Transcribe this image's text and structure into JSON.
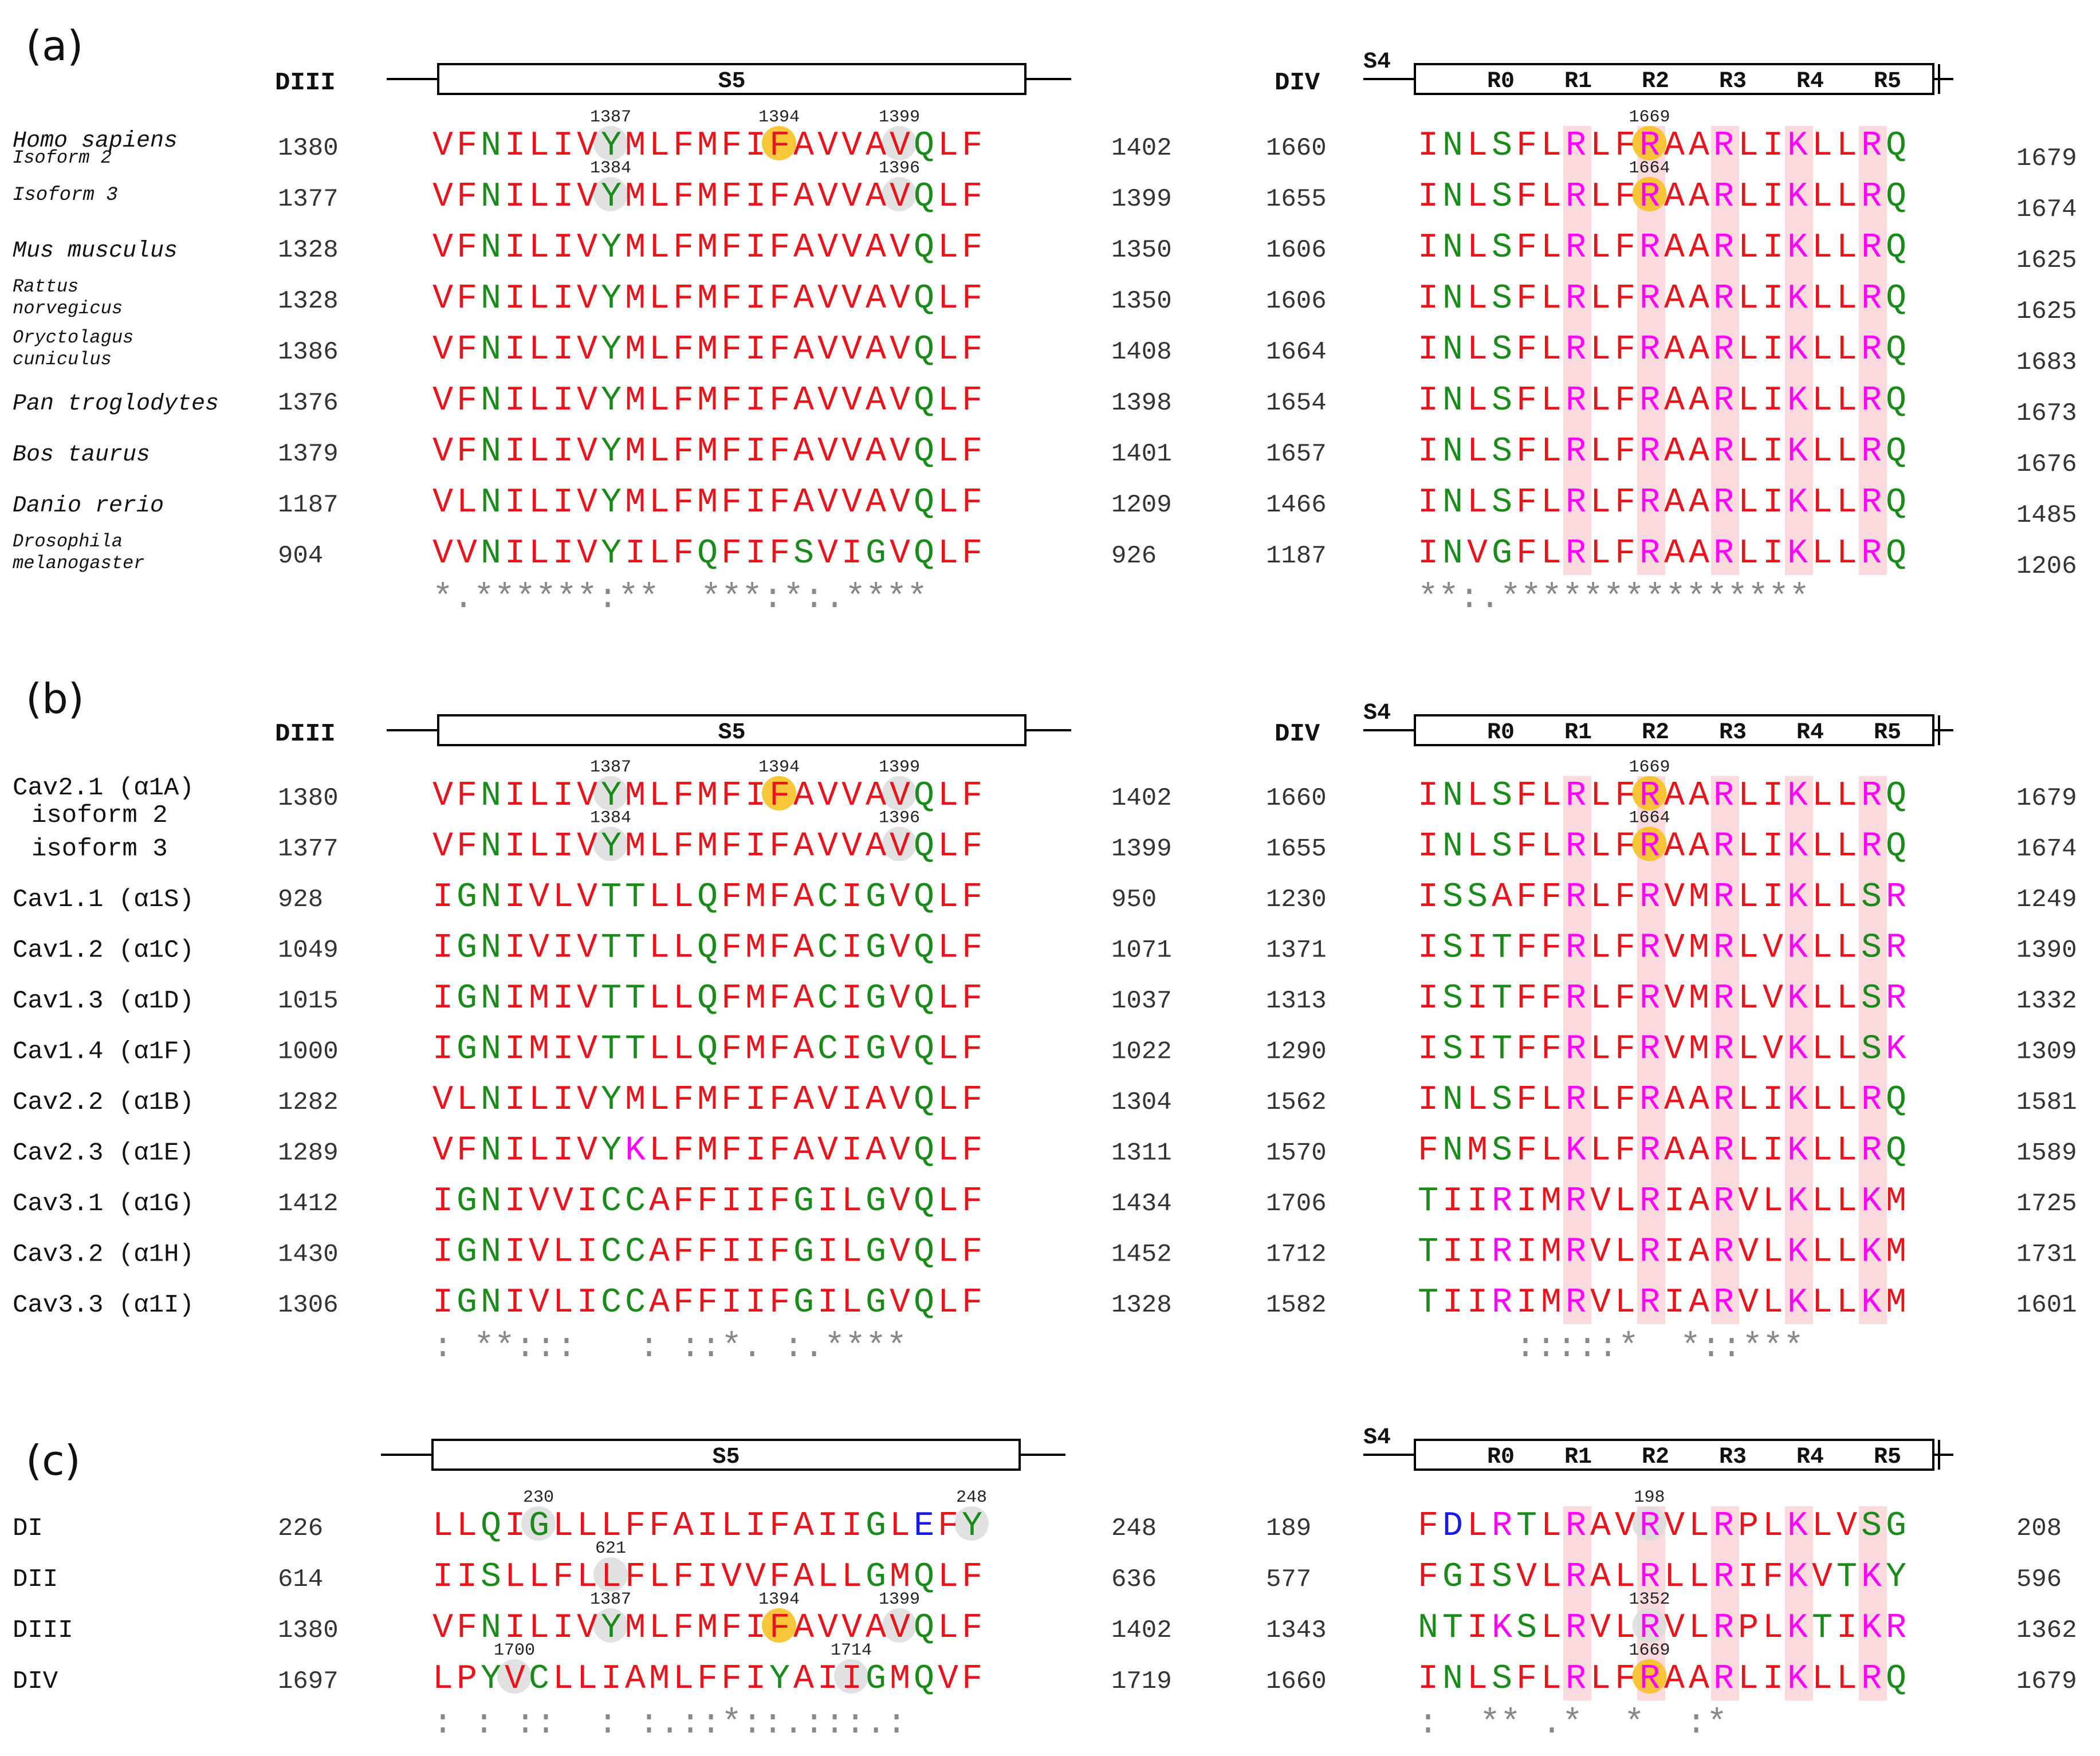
{
  "colors": {
    "hydrophobic": "#e8141c",
    "polar": "#1a8a1a",
    "basic": "#ff00ff",
    "acidic": "#1a1ae8",
    "num": "#333333",
    "cons": "#888888",
    "pinkBand": "#fadadd",
    "grayHi": "#dcdcdc",
    "yellowHi": "#f7c023"
  },
  "panels": [
    {
      "label": "(a)",
      "left_domain": "DIII",
      "left_segment": "S5",
      "right_segment_label": "S4",
      "right_domain": "DIV",
      "r_labels": [
        "R0",
        "R1",
        "R2",
        "R3",
        "R4",
        "R5"
      ],
      "italic_names": true,
      "conservation_left": "*.******:**  ***:*:.****",
      "conservation_right": "**:.***************",
      "rows": [
        {
          "name": [
            "Homo sapiens",
            "Isoform 2"
          ],
          "lstart": "1380",
          "lseq": "VFNILIVYMLFMFIFAVVAVQLF",
          "lend": "1402",
          "rstart": "1660",
          "rseq": "INLSFLRLFRAARLIKLLRQ",
          "rend": "1679",
          "ann": [
            "1387",
            "1394",
            "1399",
            "1669"
          ]
        },
        {
          "name": [
            "Isoform 3"
          ],
          "lstart": "1377",
          "lseq": "VFNILIVYMLFMFIFAVVAVQLF",
          "lend": "1399",
          "rstart": "1655",
          "rseq": "INLSFLRLFRAARLIKLLRQ",
          "rend": "1674",
          "ann": [
            "1384",
            "1396",
            "1664"
          ]
        },
        {
          "name": [
            "Mus musculus"
          ],
          "lstart": "1328",
          "lseq": "VFNILIVYMLFMFIFAVVAVQLF",
          "lend": "1350",
          "rstart": "1606",
          "rseq": "INLSFLRLFRAARLIKLLRQ",
          "rend": "1625"
        },
        {
          "name": [
            "Rattus",
            "norvegicus"
          ],
          "lstart": "1328",
          "lseq": "VFNILIVYMLFMFIFAVVAVQLF",
          "lend": "1350",
          "rstart": "1606",
          "rseq": "INLSFLRLFRAARLIKLLRQ",
          "rend": "1625"
        },
        {
          "name": [
            "Oryctolagus",
            "cuniculus"
          ],
          "lstart": "1386",
          "lseq": "VFNILIVYMLFMFIFAVVAVQLF",
          "lend": "1408",
          "rstart": "1664",
          "rseq": "INLSFLRLFRAARLIKLLRQ",
          "rend": "1683"
        },
        {
          "name": [
            "Pan troglodytes"
          ],
          "lstart": "1376",
          "lseq": "VFNILIVYMLFMFIFAVVAVQLF",
          "lend": "1398",
          "rstart": "1654",
          "rseq": "INLSFLRLFRAARLIKLLRQ",
          "rend": "1673"
        },
        {
          "name": [
            "Bos taurus"
          ],
          "lstart": "1379",
          "lseq": "VFNILIVYMLFMFIFAVVAVQLF",
          "lend": "1401",
          "rstart": "1657",
          "rseq": "INLSFLRLFRAARLIKLLRQ",
          "rend": "1676"
        },
        {
          "name": [
            "Danio rerio"
          ],
          "lstart": "1187",
          "lseq": "VLNILIVYMLFMFIFAVVAVQLF",
          "lend": "1209",
          "rstart": "1466",
          "rseq": "INLSFLRLFRAARLIKLLRQ",
          "rend": "1485"
        },
        {
          "name": [
            "Drosophila",
            "melanogaster"
          ],
          "lstart": "904",
          "lseq": "VVNILIVYILFQFIFSVIGVQLF",
          "lend": "926",
          "rstart": "1187",
          "rseq": "INVGFLRLFRAARLIKLLRQ",
          "rend": "1206"
        }
      ]
    },
    {
      "label": "(b)",
      "left_domain": "DIII",
      "left_segment": "S5",
      "right_segment_label": "S4",
      "right_domain": "DIV",
      "r_labels": [
        "R0",
        "R1",
        "R2",
        "R3",
        "R4",
        "R5"
      ],
      "italic_names": false,
      "conservation_left": ": **:::   : ::*. :.****",
      "conservation_right": ":::::*  *::***",
      "rows": [
        {
          "name": [
            "Cav2.1 (α1A)",
            "isoform 2"
          ],
          "lstart": "1380",
          "lseq": "VFNILIVYMLFMFIFAVVAVQLF",
          "lend": "1402",
          "rstart": "1660",
          "rseq": "INLSFLRLFRAARLIKLLRQ",
          "rend": "1679",
          "ann": [
            "1387",
            "1394",
            "1399",
            "1669"
          ]
        },
        {
          "name": [
            "isoform 3"
          ],
          "lstart": "1377",
          "lseq": "VFNILIVYMLFMFIFAVVAVQLF",
          "lend": "1399",
          "rstart": "1655",
          "rseq": "INLSFLRLFRAARLIKLLRQ",
          "rend": "1674",
          "ann": [
            "1384",
            "1396",
            "1664"
          ]
        },
        {
          "name": [
            "Cav1.1 (α1S)"
          ],
          "lstart": "928",
          "lseq": "IGNIVLVTTLLQFMFACIGVQLF",
          "lend": "950",
          "rstart": "1230",
          "rseq": "ISSAFFRLFRVMRLIKLLSR",
          "rend": "1249"
        },
        {
          "name": [
            "Cav1.2 (α1C)"
          ],
          "lstart": "1049",
          "lseq": "IGNIVIVTTLLQFMFACIGVQLF",
          "lend": "1071",
          "rstart": "1371",
          "rseq": "ISITFFRLFRVMRLVKLLSR",
          "rend": "1390"
        },
        {
          "name": [
            "Cav1.3 (α1D)"
          ],
          "lstart": "1015",
          "lseq": "IGNIMIVTTLLQFMFACIGVQLF",
          "lend": "1037",
          "rstart": "1313",
          "rseq": "ISITFFRLFRVMRLVKLLSR",
          "rend": "1332"
        },
        {
          "name": [
            "Cav1.4 (α1F)"
          ],
          "lstart": "1000",
          "lseq": "IGNIMIVTTLLQFMFACIGVQLF",
          "lend": "1022",
          "rstart": "1290",
          "rseq": "ISITFFRLFRVMRLVKLLSK",
          "rend": "1309"
        },
        {
          "name": [
            "Cav2.2 (α1B)"
          ],
          "lstart": "1282",
          "lseq": "VLNILIVYMLFMFIFAVIAVQLF",
          "lend": "1304",
          "rstart": "1562",
          "rseq": "INLSFLRLFRAARLIKLLRQ",
          "rend": "1581"
        },
        {
          "name": [
            "Cav2.3 (α1E)"
          ],
          "lstart": "1289",
          "lseq": "VFNILIVYKLFMFIFAVIAVQLF",
          "lend": "1311",
          "rstart": "1570",
          "rseq": "FNMSFLKLFRAARLIKLLRQ",
          "rend": "1589"
        },
        {
          "name": [
            "Cav3.1 (α1G)"
          ],
          "lstart": "1412",
          "lseq": "IGNIVVICCAFFIIFGILGVQLF",
          "lend": "1434",
          "rstart": "1706",
          "rseq": "TIIRIMRVLRIARVLKLLKM",
          "rend": "1725"
        },
        {
          "name": [
            "Cav3.2 (α1H)"
          ],
          "lstart": "1430",
          "lseq": "IGNIVLICCAFFIIFGILGVQLF",
          "lend": "1452",
          "rstart": "1712",
          "rseq": "TIIRIMRVLRIARVLKLLKM",
          "rend": "1731"
        },
        {
          "name": [
            "Cav3.3 (α1I)"
          ],
          "lstart": "1306",
          "lseq": "IGNIVLICCAFFIIFGILGVQLF",
          "lend": "1328",
          "rstart": "1582",
          "rseq": "TIIRIMRVLRIARVLKLLKM",
          "rend": "1601"
        }
      ]
    },
    {
      "label": "(c)",
      "left_domain": "",
      "left_segment": "S5",
      "right_segment_label": "S4",
      "right_domain": "",
      "r_labels": [
        "R0",
        "R1",
        "R2",
        "R3",
        "R4",
        "R5"
      ],
      "italic_names": false,
      "conservation_left": ": : ::  : :.::*::.:::.:",
      "conservation_right": ":  ** .*  *  :*",
      "rows": [
        {
          "name": [
            "DI"
          ],
          "lstart": "226",
          "lseq": "LLQIGLLLFFAILIFAIIGLEFY",
          "lend": "248",
          "rstart": "189",
          "rseq": "FDLRTLRAVRVLRPLKLVSG",
          "rend": "208",
          "ann": [
            "230",
            "248",
            "198"
          ]
        },
        {
          "name": [
            "DII"
          ],
          "lstart": "614",
          "lseq": "IISLLFLLFLFIVVFALLGMQLF",
          "lend": "636",
          "rstart": "577",
          "rseq": "FGISVLRALRLLRIFKVTKY",
          "rend": "596",
          "ann": [
            "621"
          ]
        },
        {
          "name": [
            "DIII"
          ],
          "lstart": "1380",
          "lseq": "VFNILIVYMLFMFIFAVVAVQLF",
          "lend": "1402",
          "rstart": "1343",
          "rseq": "NTIKSLRVLRVLRPLKTIKR",
          "rend": "1362",
          "ann": [
            "1387",
            "1394",
            "1399",
            "1352"
          ]
        },
        {
          "name": [
            "DIV"
          ],
          "lstart": "1697",
          "lseq": "LPYVCLLIAMLFFIYAIIGMQVF",
          "lend": "1719",
          "rstart": "1660",
          "rseq": "INLSFLRLFRAARLIKLLRQ",
          "rend": "1679",
          "ann": [
            "1700",
            "1714",
            "1669"
          ]
        }
      ]
    }
  ]
}
